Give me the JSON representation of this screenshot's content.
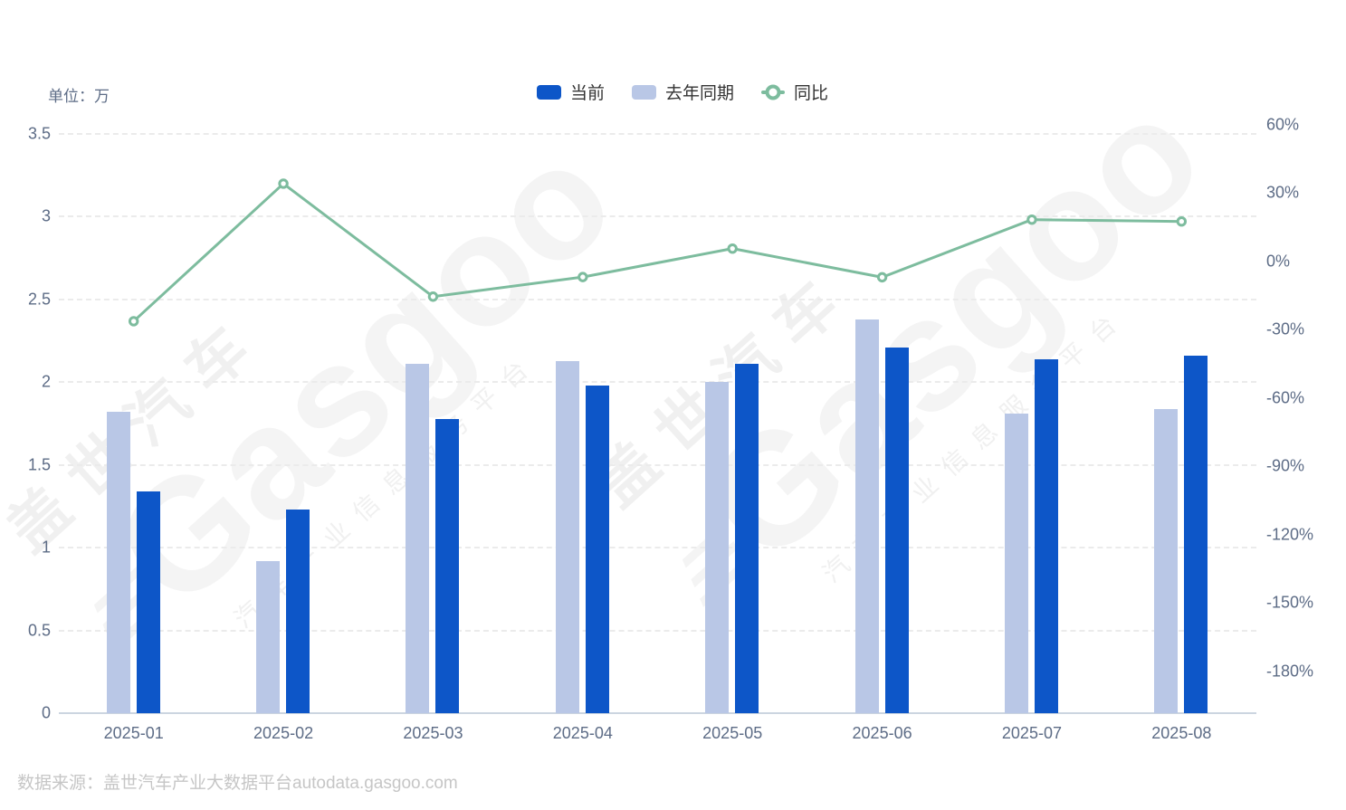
{
  "header": {
    "unit_label": "单位：万"
  },
  "legend": [
    {
      "label": "当前",
      "type": "bar",
      "color": "#0d56c8"
    },
    {
      "label": "去年同期",
      "type": "bar",
      "color": "#b9c7e6"
    },
    {
      "label": "同比",
      "type": "line",
      "color": "#7dbc9e"
    }
  ],
  "footer": {
    "source": "数据来源：盖世汽车产业大数据平台autodata.gasgoo.com"
  },
  "watermark": {
    "cn": "盖世汽车",
    "mark": "≡",
    "en": "Gasgoo",
    "sub": "汽车产业信息服务平台"
  },
  "colors": {
    "current_bar": "#0d56c8",
    "last_year_bar": "#b9c7e6",
    "yoy_line": "#7dbc9e",
    "axis_text": "#5d6c86",
    "legend_text": "#333333",
    "source_text": "#c6c6c6",
    "gridline": "#ebebeb",
    "axis_line": "#ccd5e0",
    "background": "#ffffff"
  },
  "chart_data": {
    "type": "bar+line combo, dual axis",
    "categories": [
      "2025-01",
      "2025-02",
      "2025-03",
      "2025-04",
      "2025-05",
      "2025-06",
      "2025-07",
      "2025-08"
    ],
    "series": [
      {
        "name": "当前",
        "type": "bar",
        "axis": "left",
        "unit": "万",
        "values": [
          1.34,
          1.23,
          1.78,
          1.98,
          2.11,
          2.21,
          2.14,
          2.16
        ],
        "color": "#0d56c8"
      },
      {
        "name": "去年同期",
        "type": "bar",
        "axis": "left",
        "unit": "万",
        "values": [
          1.82,
          0.92,
          2.11,
          2.13,
          2.0,
          2.38,
          1.81,
          1.84
        ],
        "color": "#b9c7e6"
      },
      {
        "name": "同比",
        "type": "line",
        "axis": "right",
        "unit": "%",
        "values": [
          -26.4,
          34.0,
          -15.6,
          -7.0,
          5.5,
          -7.1,
          18.2,
          17.4
        ],
        "color": "#7dbc9e"
      }
    ],
    "left_axis": {
      "min": 0,
      "max": 3.5,
      "ticks": [
        0,
        0.5,
        1,
        1.5,
        2,
        2.5,
        3,
        3.5
      ],
      "tick_labels": [
        "0",
        "0.5",
        "1",
        "1.5",
        "2",
        "2.5",
        "3",
        "3.5"
      ],
      "unit": "万"
    },
    "right_axis": {
      "ticks": [
        60,
        30,
        0,
        -30,
        -60,
        -90,
        -120,
        -150,
        -180
      ],
      "tick_labels": [
        "60%",
        "30%",
        "0%",
        "-30%",
        "-60%",
        "-90%",
        "-120%",
        "-150%",
        "-180%"
      ]
    },
    "grid": "horizontal dashed lines, solid baseline",
    "legend_position": "top-center"
  }
}
